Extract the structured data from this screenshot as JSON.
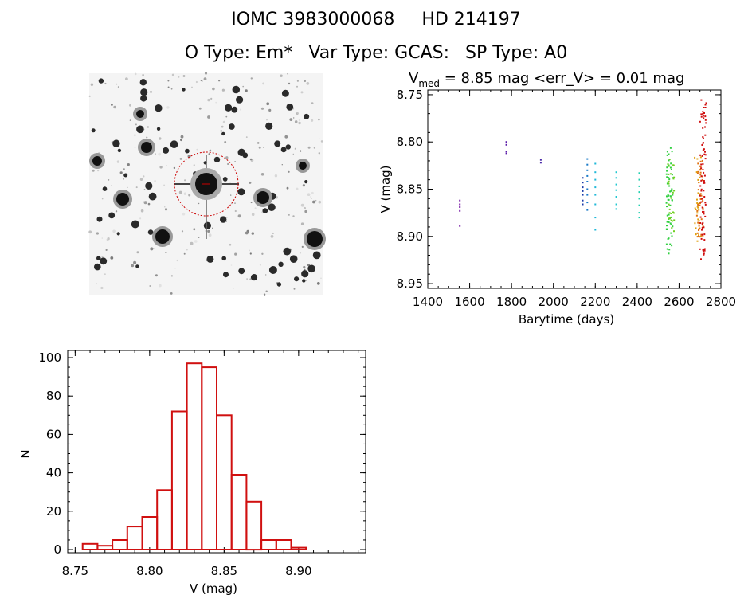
{
  "header": {
    "designation": "IOMC 3983000068",
    "hd": "HD 214197",
    "object_type": "O Type: Em*",
    "var_type": "Var Type: GCAS:",
    "sp_type": "SP Type: A0"
  },
  "colors": {
    "histogram": "#d01010",
    "image_circle": "#cc0000",
    "series_palette": [
      "#7a1ea8",
      "#4a1aa0",
      "#1a3aa8",
      "#1a8ad0",
      "#20c8d0",
      "#30d060",
      "#60d020",
      "#d0c020",
      "#e08010",
      "#d01010"
    ]
  },
  "chart_data": [
    {
      "type": "scatter",
      "title_prefix": "V",
      "title_subscript": "med",
      "title_rest": " = 8.85 mag <err_V> = 0.01 mag",
      "xlabel": "Barytime (days)",
      "ylabel": "V (mag)",
      "xlim": [
        1400,
        2800
      ],
      "ylim": [
        8.955,
        8.745
      ],
      "y_inverted": true,
      "xticks": [
        "1400",
        "1600",
        "1800",
        "2000",
        "2200",
        "2400",
        "2600",
        "2800"
      ],
      "yticks": [
        "8.75",
        "8.80",
        "8.85",
        "8.90",
        "8.95"
      ],
      "groups": [
        {
          "x": 1553,
          "y": [
            8.862,
            8.866,
            8.869,
            8.873,
            8.889
          ],
          "color": "#7a1ea8"
        },
        {
          "x": 1775,
          "y": [
            8.8,
            8.803,
            8.81,
            8.812
          ],
          "color": "#5a1aa8"
        },
        {
          "x": 1940,
          "y": [
            8.819,
            8.822
          ],
          "color": "#4a2aa8"
        },
        {
          "x": 2140,
          "y": [
            8.838,
            8.843,
            8.848,
            8.852,
            8.856,
            8.862,
            8.866
          ],
          "color": "#1a3aa8"
        },
        {
          "x": 2162,
          "y": [
            8.818,
            8.824,
            8.83,
            8.836,
            8.842,
            8.85,
            8.856,
            8.864,
            8.872
          ],
          "color": "#1a7ac8"
        },
        {
          "x": 2200,
          "y": [
            8.823,
            8.832,
            8.84,
            8.848,
            8.856,
            8.866,
            8.88,
            8.893
          ],
          "color": "#20b8d8"
        },
        {
          "x": 2300,
          "y": [
            8.832,
            8.838,
            8.845,
            8.851,
            8.858,
            8.866,
            8.871
          ],
          "color": "#20c8d0"
        },
        {
          "x": 2410,
          "y": [
            8.833,
            8.84,
            8.847,
            8.853,
            8.86,
            8.867,
            8.875,
            8.88
          ],
          "color": "#20d0b0"
        },
        {
          "x": 2555,
          "ymin": 8.805,
          "ymax": 8.92,
          "n": 60,
          "color": "#30d040"
        },
        {
          "x": 2562,
          "ymin": 8.812,
          "ymax": 8.905,
          "n": 30,
          "color": "#70d020"
        },
        {
          "x": 2690,
          "ymin": 8.815,
          "ymax": 8.905,
          "n": 30,
          "color": "#e0a010"
        },
        {
          "x": 2700,
          "ymin": 8.82,
          "ymax": 8.905,
          "n": 40,
          "color": "#e07010"
        },
        {
          "x": 2715,
          "ymin": 8.755,
          "ymax": 8.925,
          "n": 80,
          "color": "#d01010"
        }
      ]
    },
    {
      "type": "bar",
      "histogram": true,
      "xlabel": "V (mag)",
      "ylabel": "N",
      "xlim": [
        8.745,
        8.945
      ],
      "ylim": [
        0,
        100
      ],
      "xticks": [
        "8.75",
        "8.80",
        "8.85",
        "8.90"
      ],
      "yticks": [
        "0",
        "20",
        "40",
        "60",
        "80",
        "100"
      ],
      "bin_width": 0.01,
      "bin_left_edges": [
        8.755,
        8.765,
        8.775,
        8.785,
        8.795,
        8.805,
        8.815,
        8.825,
        8.835,
        8.845,
        8.855,
        8.865,
        8.875,
        8.885,
        8.895,
        8.905,
        8.915,
        8.925
      ],
      "values": [
        3,
        2,
        5,
        12,
        17,
        31,
        72,
        97,
        95,
        70,
        39,
        25,
        5,
        5,
        1,
        0,
        0,
        0
      ]
    }
  ]
}
